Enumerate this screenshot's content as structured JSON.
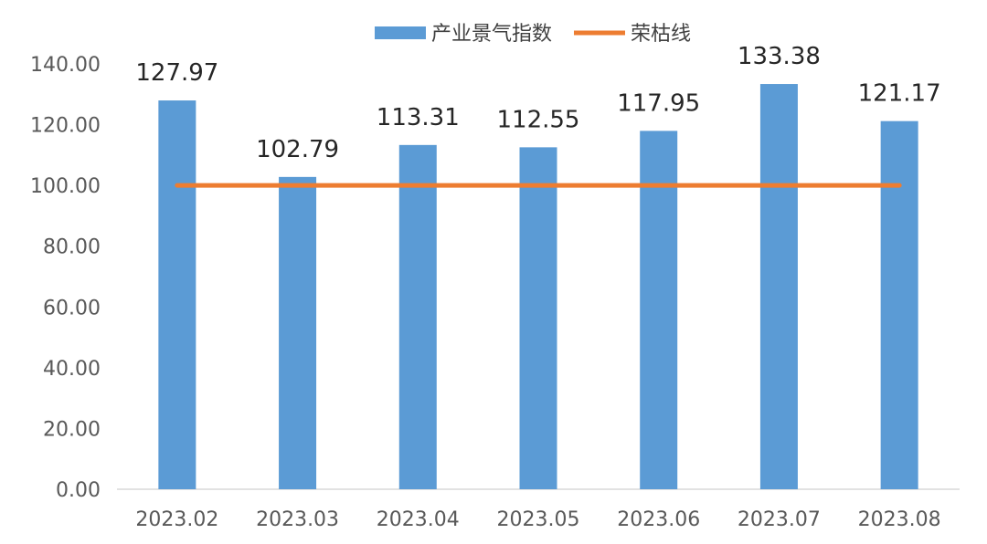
{
  "chart_data": {
    "type": "bar",
    "categories": [
      "2023.02",
      "2023.03",
      "2023.04",
      "2023.05",
      "2023.06",
      "2023.07",
      "2023.08"
    ],
    "series": [
      {
        "name": "产业景气指数",
        "type": "bar",
        "values": [
          127.97,
          102.79,
          113.31,
          112.55,
          117.95,
          133.38,
          121.17
        ],
        "labels": [
          "127.97",
          "102.79",
          "113.31",
          "112.55",
          "117.95",
          "133.38",
          "121.17"
        ],
        "color": "#5B9BD5"
      },
      {
        "name": "荣枯线",
        "type": "line",
        "values": [
          100,
          100,
          100,
          100,
          100,
          100,
          100
        ],
        "color": "#ED7D31"
      }
    ],
    "y_ticks": [
      "0.00",
      "20.00",
      "40.00",
      "60.00",
      "80.00",
      "100.00",
      "120.00",
      "140.00"
    ],
    "ylim": [
      0,
      140
    ],
    "grid": false,
    "legend_position": "top-center"
  }
}
